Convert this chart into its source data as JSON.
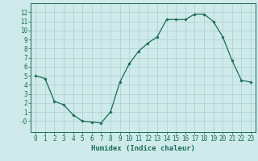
{
  "x": [
    0,
    1,
    2,
    3,
    4,
    5,
    6,
    7,
    8,
    9,
    10,
    11,
    12,
    13,
    14,
    15,
    16,
    17,
    18,
    19,
    20,
    21,
    22,
    23
  ],
  "y": [
    5.0,
    4.7,
    2.2,
    1.8,
    0.7,
    0.0,
    -0.1,
    -0.2,
    1.0,
    4.3,
    6.3,
    7.7,
    8.6,
    9.3,
    11.2,
    11.2,
    11.2,
    11.8,
    11.8,
    11.0,
    9.3,
    6.7,
    4.5,
    4.3
  ],
  "line_color": "#1a6b5a",
  "marker": "D",
  "markersize": 1.8,
  "linewidth": 0.9,
  "bg_color": "#ceeaea",
  "grid_color": "#aed0d0",
  "xlabel": "Humidex (Indice chaleur)",
  "xlabel_fontsize": 6.5,
  "ylabel_ticks": [
    0,
    1,
    2,
    3,
    4,
    5,
    6,
    7,
    8,
    9,
    10,
    11,
    12
  ],
  "ylim": [
    -1.2,
    13
  ],
  "xlim": [
    -0.5,
    23.5
  ],
  "xtick_labels": [
    "0",
    "1",
    "2",
    "3",
    "4",
    "5",
    "6",
    "7",
    "8",
    "9",
    "10",
    "11",
    "12",
    "13",
    "14",
    "15",
    "16",
    "17",
    "18",
    "19",
    "20",
    "21",
    "22",
    "23"
  ],
  "tick_fontsize": 5.5
}
